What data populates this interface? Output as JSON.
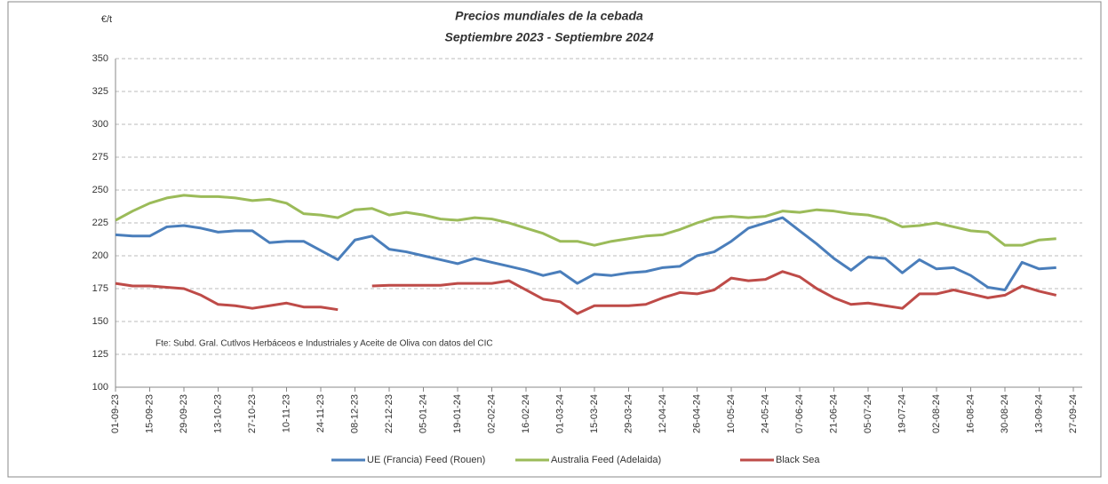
{
  "chart_data": {
    "type": "line",
    "title": "Precios mundiales de la cebada",
    "subtitle": "Septiembre 2023 - Septiembre 2024",
    "y_unit": "€/t",
    "note": "Fte: Subd. Gral. Cutlvos Herbáceos e Industriales y Aceite de Oliva con datos del CIC",
    "categories": [
      "01-09-23",
      null,
      "15-09-23",
      null,
      "29-09-23",
      null,
      "13-10-23",
      null,
      "27-10-23",
      null,
      "10-11-23",
      null,
      "24-11-23",
      null,
      "08-12-23",
      null,
      "22-12-23",
      null,
      "05-01-24",
      null,
      "19-01-24",
      null,
      "02-02-24",
      null,
      "16-02-24",
      null,
      "01-03-24",
      null,
      "15-03-24",
      null,
      "29-03-24",
      null,
      "12-04-24",
      null,
      "26-04-24",
      null,
      "10-05-24",
      null,
      "24-05-24",
      null,
      "07-06-24",
      null,
      "21-06-24",
      null,
      "05-07-24",
      null,
      "19-07-24",
      null,
      "02-08-24",
      null,
      "16-08-24",
      null,
      "30-08-24",
      null,
      "13-09-24",
      null,
      "27-09-24"
    ],
    "series": [
      {
        "name": "UE (Francia) Feed (Rouen)",
        "color": "#4a7ebb",
        "values": [
          216,
          215,
          215,
          222,
          223,
          221,
          218,
          219,
          219,
          210,
          211,
          211,
          204,
          197,
          212,
          215,
          205,
          203,
          200,
          197,
          194,
          198,
          195,
          192,
          189,
          185,
          188,
          179,
          186,
          185,
          187,
          188,
          191,
          192,
          200,
          203,
          211,
          221,
          225,
          229,
          219,
          209,
          198,
          189,
          199,
          198,
          187,
          197,
          190,
          191,
          185,
          176,
          174,
          195,
          190,
          191,
          null
        ]
      },
      {
        "name": "Australia Feed (Adelaida)",
        "color": "#9bbb59",
        "values": [
          227,
          234,
          240,
          244,
          246,
          245,
          245,
          244,
          242,
          243,
          240,
          232,
          231,
          229,
          235,
          236,
          231,
          233,
          231,
          228,
          227,
          229,
          228,
          225,
          221,
          217,
          211,
          211,
          208,
          211,
          213,
          215,
          216,
          220,
          225,
          229,
          230,
          229,
          230,
          234,
          233,
          235,
          234,
          232,
          231,
          228,
          222,
          223,
          225,
          222,
          219,
          218,
          208,
          208,
          212,
          213,
          null
        ]
      },
      {
        "name": "Black Sea",
        "color": "#be4b48",
        "values": [
          179,
          177,
          177,
          176,
          175,
          170,
          163,
          162,
          160,
          162,
          164,
          161,
          161,
          159,
          null,
          177,
          177.5,
          177.5,
          177.5,
          177.5,
          179,
          179,
          179,
          181,
          174,
          167,
          165,
          156,
          162,
          162,
          162,
          163,
          168,
          172,
          171,
          174,
          183,
          181,
          182,
          188,
          184,
          175,
          168,
          163,
          164,
          162,
          160,
          171,
          171,
          174,
          171,
          168,
          170,
          177,
          173,
          170,
          null
        ]
      }
    ],
    "ylim": [
      100,
      350
    ],
    "yticks": [
      100,
      125,
      150,
      175,
      200,
      225,
      250,
      275,
      300,
      325,
      350
    ],
    "grid": true
  }
}
